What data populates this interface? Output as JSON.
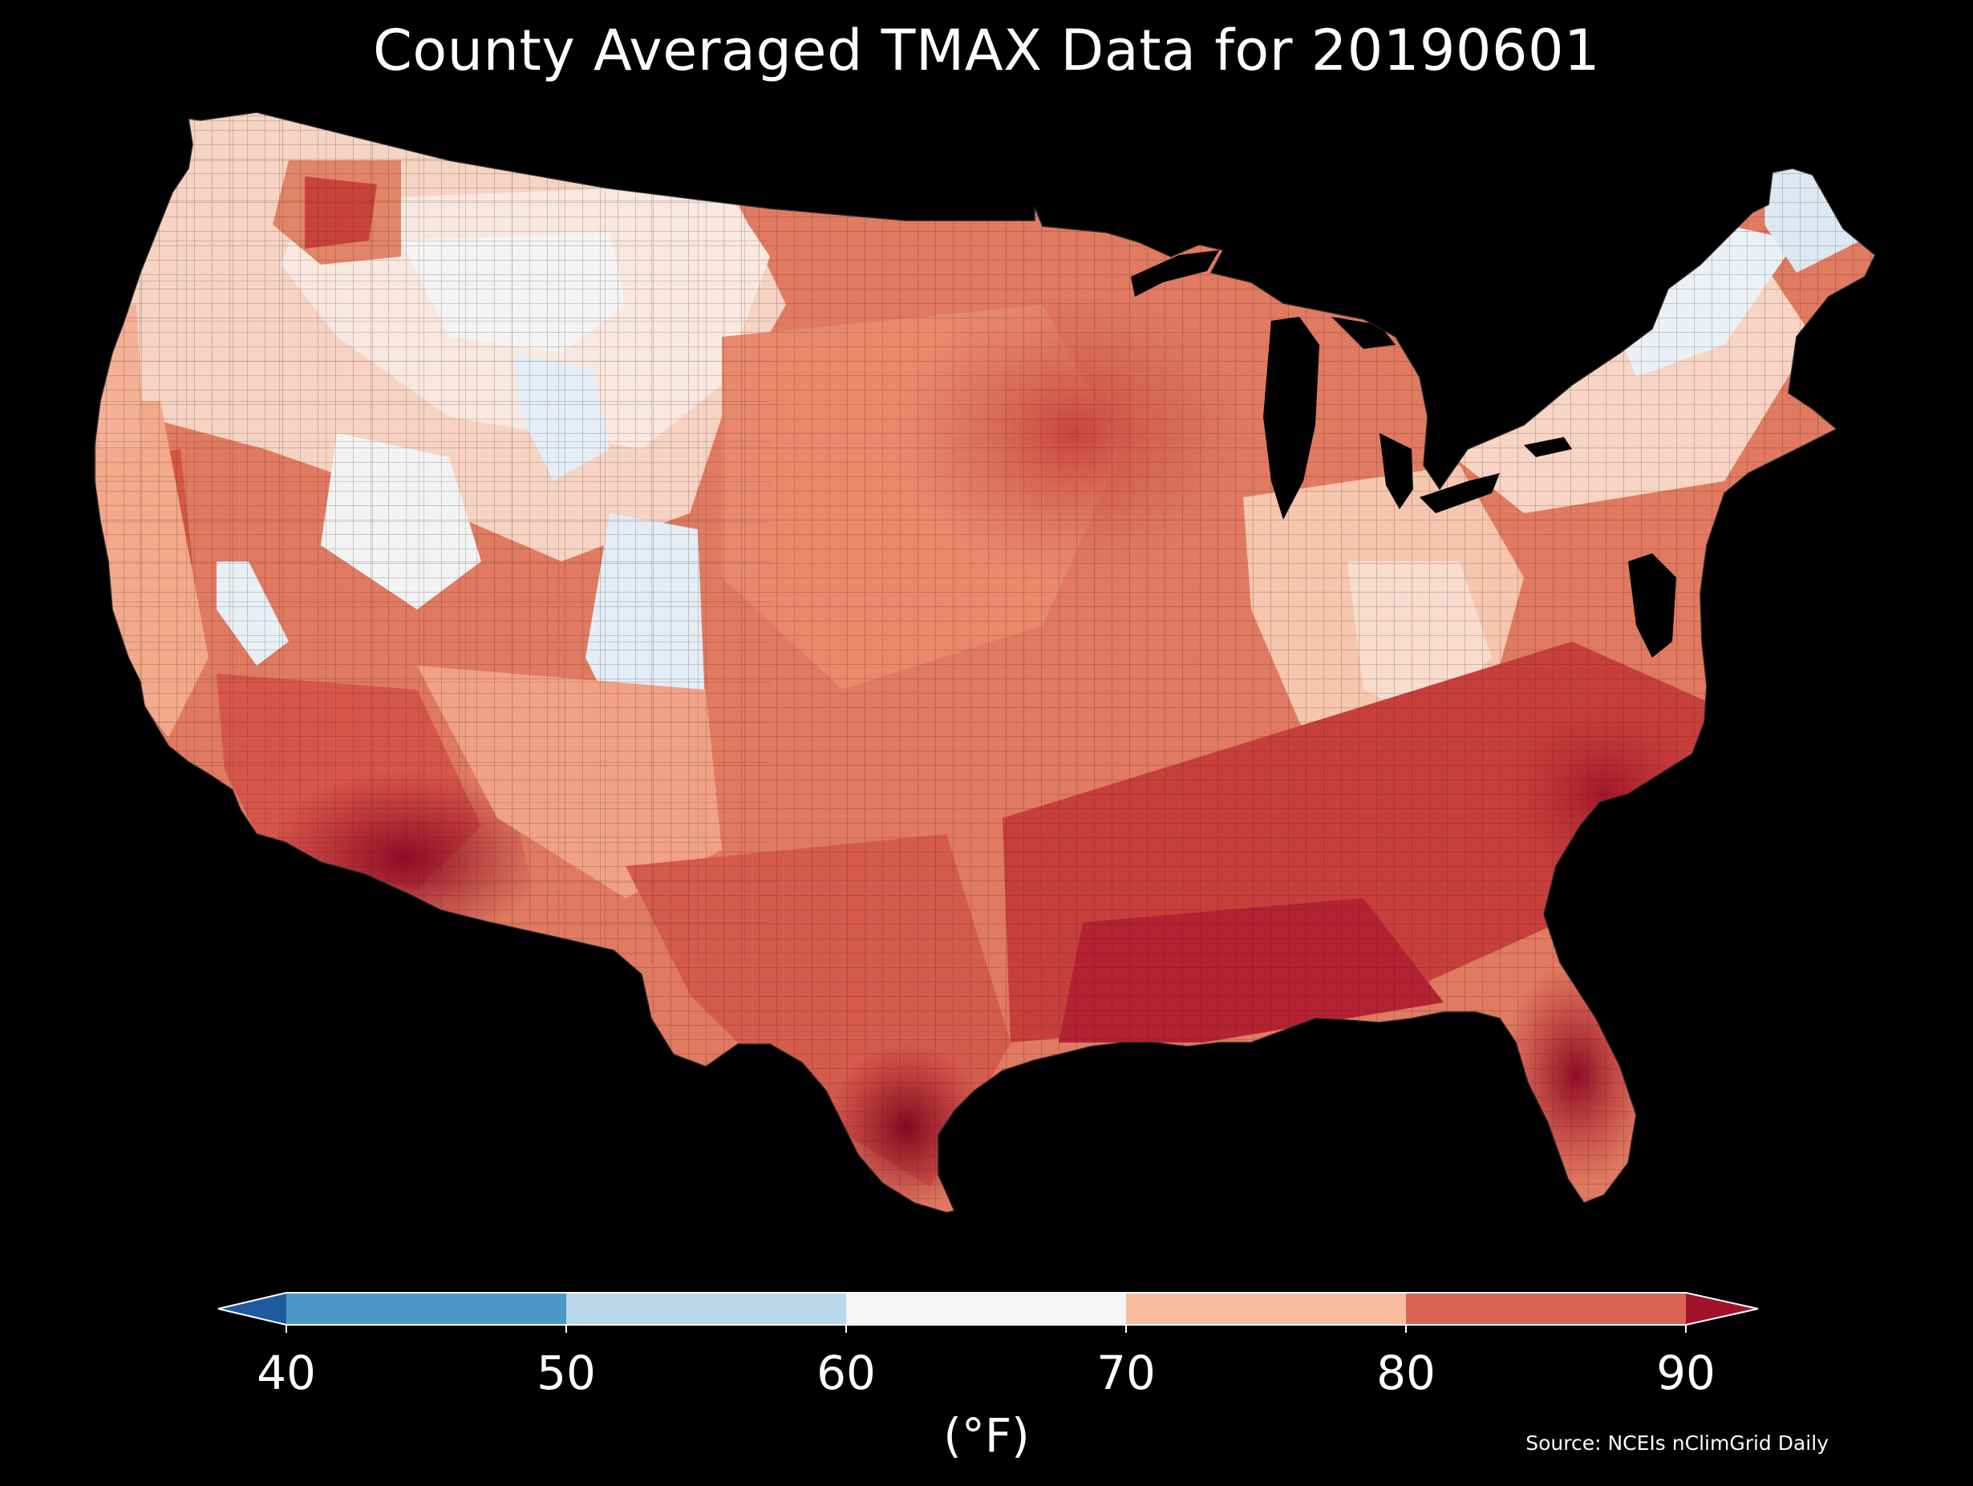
{
  "title": "County Averaged TMAX Data for 20190601",
  "colorbar": {
    "ticks": [
      "40",
      "50",
      "60",
      "70",
      "80",
      "90"
    ],
    "bins": [
      {
        "from": null,
        "to": 40,
        "color": "#1f5a9e"
      },
      {
        "from": 40,
        "to": 50,
        "color": "#4b98c6"
      },
      {
        "from": 50,
        "to": 60,
        "color": "#b8d8ea"
      },
      {
        "from": 60,
        "to": 70,
        "color": "#f5f5f5"
      },
      {
        "from": 70,
        "to": 80,
        "color": "#f7bba0"
      },
      {
        "from": 80,
        "to": 90,
        "color": "#da6453"
      },
      {
        "from": 90,
        "to": null,
        "color": "#a0122a"
      }
    ],
    "extend": "both",
    "unit": "(°F)"
  },
  "source": "Source: NCEIs nClimGrid Daily",
  "map": {
    "region": "Contiguous United States",
    "background": "#000000",
    "boundary_color": "#333333",
    "ocean_color": "#000000",
    "great_lakes_color": "#000000"
  }
}
